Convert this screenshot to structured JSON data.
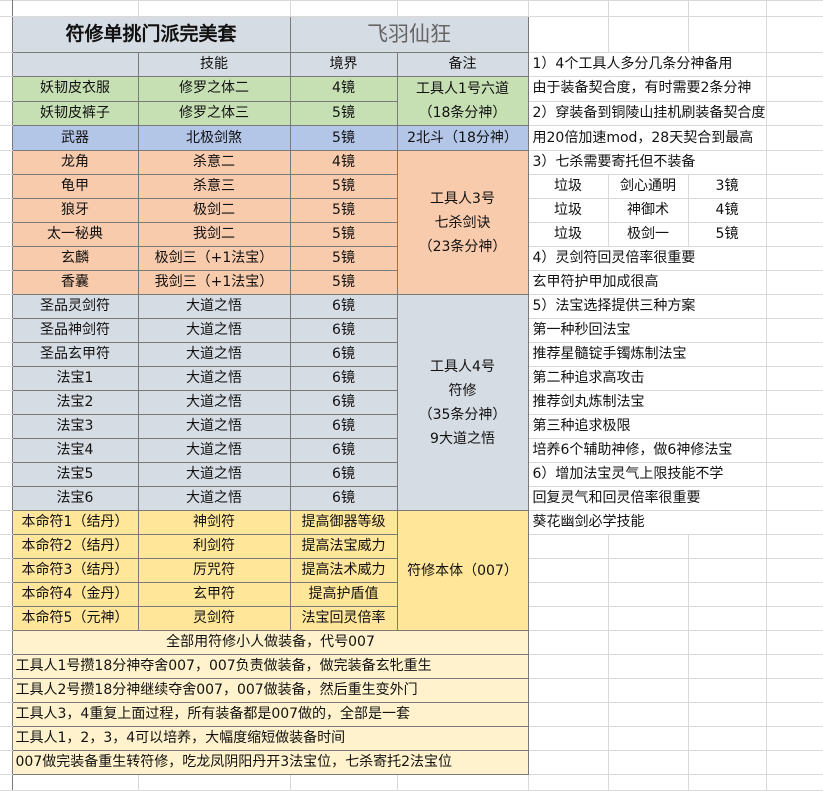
{
  "sheet": {
    "title": "符修单挑门派完美套",
    "subtitle": "飞羽仙狂",
    "headers": [
      "",
      "技能",
      "境界",
      "备注"
    ],
    "groups": [
      {
        "color": "#c6e0b4",
        "rows": [
          [
            "妖韧皮衣服",
            "修罗之体二",
            "4镜"
          ],
          [
            "妖韧皮裤子",
            "修罗之体三",
            "5镜"
          ]
        ],
        "note": [
          "工具人1号六道",
          "（18条分神）"
        ]
      },
      {
        "color": "#b4c6e7",
        "rows": [
          [
            "武器",
            "北极剑煞",
            "5镜"
          ]
        ],
        "note": [
          "2北斗（18分神）"
        ]
      },
      {
        "color": "#f8cbad",
        "rows": [
          [
            "龙角",
            "杀意二",
            "4镜"
          ],
          [
            "龟甲",
            "杀意三",
            "5镜"
          ],
          [
            "狼牙",
            "极剑二",
            "5镜"
          ],
          [
            "太一秘典",
            "我剑二",
            "5镜"
          ],
          [
            "玄麟",
            "极剑三（+1法宝）",
            "5镜"
          ],
          [
            "香囊",
            "我剑三（+1法宝）",
            "5镜"
          ]
        ],
        "note": [
          "工具人3号",
          "七杀剑诀",
          "（23条分神）"
        ]
      },
      {
        "color": "#d6dce4",
        "rows": [
          [
            "圣品灵剑符",
            "大道之悟",
            "6镜"
          ],
          [
            "圣品神剑符",
            "大道之悟",
            "6镜"
          ],
          [
            "圣品玄甲符",
            "大道之悟",
            "6镜"
          ],
          [
            "法宝1",
            "大道之悟",
            "6镜"
          ],
          [
            "法宝2",
            "大道之悟",
            "6镜"
          ],
          [
            "法宝3",
            "大道之悟",
            "6镜"
          ],
          [
            "法宝4",
            "大道之悟",
            "6镜"
          ],
          [
            "法宝5",
            "大道之悟",
            "6镜"
          ],
          [
            "法宝6",
            "大道之悟",
            "6镜"
          ]
        ],
        "note": [
          "工具人4号",
          "符修",
          "（35条分神）",
          "9大道之悟"
        ]
      },
      {
        "color": "#ffe699",
        "rows": [
          [
            "本命符1（结丹）",
            "神剑符",
            "提高御器等级"
          ],
          [
            "本命符2（结丹）",
            "利剑符",
            "提高法宝威力"
          ],
          [
            "本命符3（结丹）",
            "厉咒符",
            "提高法术威力"
          ],
          [
            "本命符4（金丹）",
            "玄甲符",
            "提高护盾值"
          ],
          [
            "本命符5（元神）",
            "灵剑符",
            "法宝回灵倍率"
          ]
        ],
        "note": [
          "符修本体（007）"
        ]
      }
    ],
    "bottom_lines": [
      "全部用符修小人做装备，代号007",
      "工具人1号攒18分神夺舍007，007负责做装备，做完装备玄牝重生",
      "工具人2号攒18分神继续夺舍007，007做装备，然后重生变外门",
      "工具人3，4重复上面过程，所有装备都是007做的，全部是一套",
      "工具人1，2，3，4可以培养，大幅度缩短做装备时间",
      "007做完装备重生转符修，吃龙凤阴阳丹开3法宝位，七杀寄托2法宝位"
    ]
  },
  "notes": [
    "1）4个工具人多分几条分神备用",
    "由于装备契合度，有时需要2条分神",
    "2）穿装备到铜陵山挂机刷装备契合度",
    "用20倍加速mod，28天契合到最高",
    "3）七杀需要寄托但不装备",
    [
      "垃圾",
      "剑心通明",
      "3镜"
    ],
    [
      "垃圾",
      "神御术",
      "4镜"
    ],
    [
      "垃圾",
      "极剑一",
      "5镜"
    ],
    "4）灵剑符回灵倍率很重要",
    "玄甲符护甲加成很高",
    "5）法宝选择提供三种方案",
    "第一种秒回法宝",
    "推荐星髓锭手镯炼制法宝",
    "第二种追求高攻击",
    "推荐剑丸炼制法宝",
    "第三种追求极限",
    "培养6个辅助神修，做6神修法宝",
    "6）增加法宝灵气上限技能不学",
    "回复灵气和回灵倍率很重要",
    "葵花幽剑必学技能"
  ]
}
